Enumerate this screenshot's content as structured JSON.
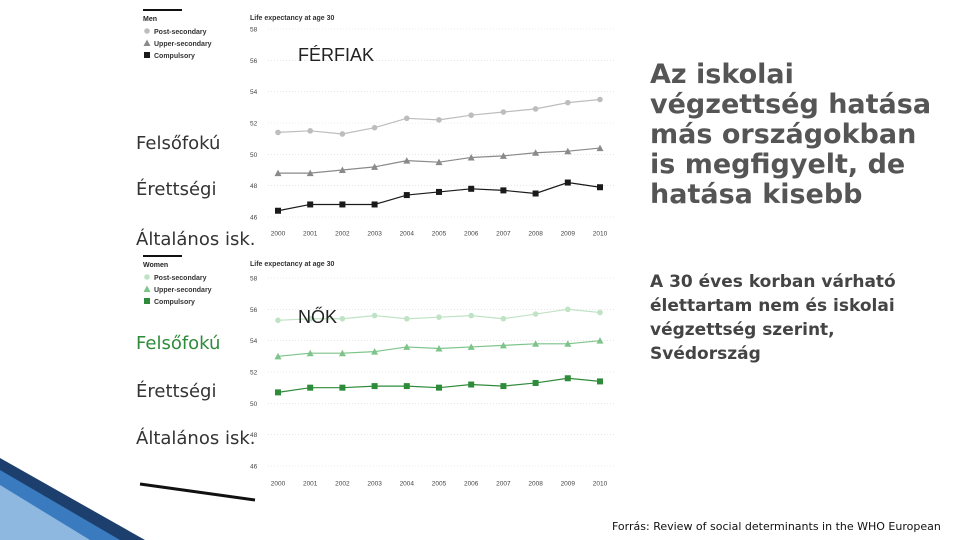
{
  "slide": {
    "headline": "Az iskolai végzettség hatása más országokban is megfigyelt, de hatása kisebb",
    "subtext": "A 30 éves korban várható élettartam nem és iskolai végzettség szerint, Svédország",
    "source": "Forrás: Review of social determinants in the WHO European"
  },
  "annotations": {
    "men": {
      "group": "FÉRFIAK",
      "labels": [
        "Felsőfokú",
        "Érettségi",
        "Általános isk."
      ]
    },
    "women": {
      "group": "NŐK",
      "labels": [
        "Felsőfokú",
        "Érettségi",
        "Általános isk."
      ]
    }
  },
  "colors": {
    "post_secondary": "#bdbdbd",
    "upper_secondary": "#8a8a8a",
    "compulsory_men": "#1a1a1a",
    "compulsory_women": "#2e8b3a",
    "label_green": "#2e8b3a"
  },
  "chart_data": [
    {
      "type": "line",
      "title": "Men",
      "ylabel": "Life expectancy at age 30",
      "x": [
        "2000",
        "2001",
        "2002",
        "2003",
        "2004",
        "2005",
        "2006",
        "2007",
        "2008",
        "2009",
        "2010"
      ],
      "ylim": [
        46,
        58
      ],
      "yticks": [
        "58",
        "56",
        "54",
        "52",
        "50",
        "48",
        "46"
      ],
      "legend": [
        "Post-secondary",
        "Upper-secondary",
        "Compulsory"
      ],
      "series": [
        {
          "name": "Post-secondary",
          "values": [
            51.4,
            51.5,
            51.3,
            51.7,
            52.3,
            52.2,
            52.5,
            52.7,
            52.9,
            53.3,
            53.5
          ]
        },
        {
          "name": "Upper-secondary",
          "values": [
            48.8,
            48.8,
            49.0,
            49.2,
            49.6,
            49.5,
            49.8,
            49.9,
            50.1,
            50.2,
            50.4
          ]
        },
        {
          "name": "Compulsory",
          "values": [
            46.4,
            46.8,
            46.8,
            46.8,
            47.4,
            47.6,
            47.8,
            47.7,
            47.5,
            48.2,
            47.9
          ]
        }
      ]
    },
    {
      "type": "line",
      "title": "Women",
      "ylabel": "Life expectancy at age 30",
      "x": [
        "2000",
        "2001",
        "2002",
        "2003",
        "2004",
        "2005",
        "2006",
        "2007",
        "2008",
        "2009",
        "2010"
      ],
      "ylim": [
        46,
        58
      ],
      "yticks": [
        "58",
        "56",
        "54",
        "52",
        "50",
        "48",
        "46"
      ],
      "legend": [
        "Post-secondary",
        "Upper-secondary",
        "Compulsory"
      ],
      "series": [
        {
          "name": "Post-secondary",
          "values": [
            55.3,
            55.4,
            55.4,
            55.6,
            55.4,
            55.5,
            55.6,
            55.4,
            55.7,
            56.0,
            55.8
          ]
        },
        {
          "name": "Upper-secondary",
          "values": [
            53.0,
            53.2,
            53.2,
            53.3,
            53.6,
            53.5,
            53.6,
            53.7,
            53.8,
            53.8,
            54.0
          ]
        },
        {
          "name": "Compulsory",
          "values": [
            50.7,
            51.0,
            51.0,
            51.1,
            51.1,
            51.0,
            51.2,
            51.1,
            51.3,
            51.6,
            51.4
          ]
        }
      ]
    }
  ]
}
